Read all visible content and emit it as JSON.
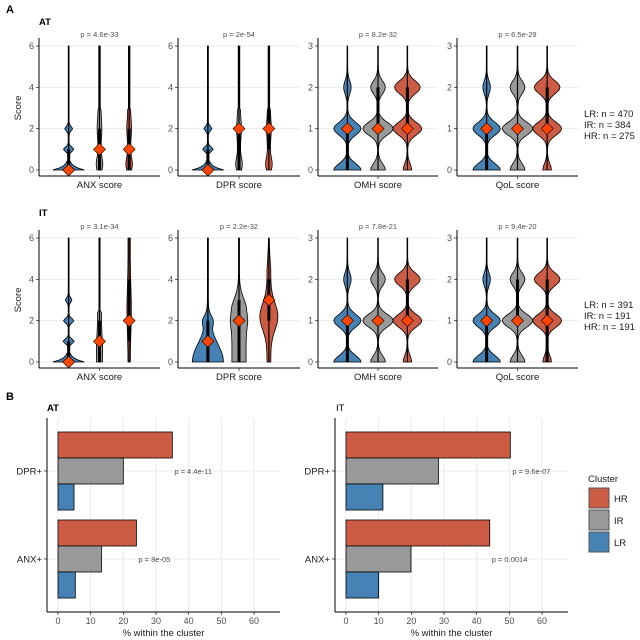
{
  "figure": {
    "panel_a_label": "A",
    "panel_b_label": "B"
  },
  "chart_data": [
    {
      "type": "violin",
      "panel": "A",
      "row_title": "AT",
      "ylabel": "Score",
      "groups": [
        "LR",
        "IR",
        "HR"
      ],
      "colors": {
        "LR": "#4682B4",
        "IR": "#999999",
        "HR": "#CD5C45"
      },
      "median_marker_color": "#FF4500",
      "n_labels": [
        "LR: n = 470",
        "IR: n = 384",
        "HR: n = 275"
      ],
      "facets": [
        {
          "xlabel": "ANX score",
          "p_label": "p = 4.6e-33",
          "ylim": [
            0,
            6
          ],
          "yticks": [
            "0",
            "2",
            "4",
            "6"
          ],
          "medians": [
            0,
            1,
            1
          ],
          "iqr": [
            [
              0,
              1
            ],
            [
              0,
              2
            ],
            [
              0,
              2
            ]
          ]
        },
        {
          "xlabel": "DPR score",
          "p_label": "p = 2e-54",
          "ylim": [
            0,
            6
          ],
          "yticks": [
            "0",
            "2",
            "4",
            "6"
          ],
          "medians": [
            0,
            2,
            2
          ],
          "iqr": [
            [
              0,
              1
            ],
            [
              0,
              2
            ],
            [
              1,
              3
            ]
          ]
        },
        {
          "xlabel": "OMH score",
          "p_label": "p = 8.2e-32",
          "ylim": [
            0,
            3
          ],
          "yticks": [
            "0",
            "1",
            "2",
            "3"
          ],
          "medians": [
            1,
            1,
            1
          ],
          "iqr": [
            [
              0,
              1
            ],
            [
              1,
              2
            ],
            [
              1,
              2
            ]
          ]
        },
        {
          "xlabel": "QoL score",
          "p_label": "p = 6.5e-29",
          "ylim": [
            0,
            3
          ],
          "yticks": [
            "0",
            "1",
            "2",
            "3"
          ],
          "medians": [
            1,
            1,
            1
          ],
          "iqr": [
            [
              0,
              1
            ],
            [
              1,
              1
            ],
            [
              1,
              2
            ]
          ]
        }
      ]
    },
    {
      "type": "violin",
      "panel": "A",
      "row_title": "IT",
      "ylabel": "Score",
      "groups": [
        "LR",
        "IR",
        "HR"
      ],
      "colors": {
        "LR": "#4682B4",
        "IR": "#999999",
        "HR": "#CD5C45"
      },
      "median_marker_color": "#FF4500",
      "n_labels": [
        "LR: n = 391",
        "IR: n = 191",
        "HR: n = 191"
      ],
      "facets": [
        {
          "xlabel": "ANX score",
          "p_label": "p = 3.1e-34",
          "ylim": [
            0,
            6
          ],
          "yticks": [
            "0",
            "2",
            "4",
            "6"
          ],
          "medians": [
            0,
            1,
            2
          ],
          "iqr": [
            [
              0,
              1
            ],
            [
              0,
              2
            ],
            [
              1,
              4
            ]
          ]
        },
        {
          "xlabel": "DPR score",
          "p_label": "p = 2.2e-32",
          "ylim": [
            0,
            6
          ],
          "yticks": [
            "0",
            "2",
            "4",
            "6"
          ],
          "medians": [
            1,
            2,
            3
          ],
          "iqr": [
            [
              0,
              2
            ],
            [
              0,
              3
            ],
            [
              2,
              4
            ]
          ]
        },
        {
          "xlabel": "OMH score",
          "p_label": "p = 7.8e-21",
          "ylim": [
            0,
            3
          ],
          "yticks": [
            "0",
            "1",
            "2",
            "3"
          ],
          "medians": [
            1,
            1,
            1
          ],
          "iqr": [
            [
              0,
              1
            ],
            [
              1,
              1
            ],
            [
              1,
              2
            ]
          ]
        },
        {
          "xlabel": "QoL score",
          "p_label": "p = 9.4e-20",
          "ylim": [
            0,
            3
          ],
          "yticks": [
            "0",
            "1",
            "2",
            "3"
          ],
          "medians": [
            1,
            1,
            1
          ],
          "iqr": [
            [
              0,
              1
            ],
            [
              1,
              2
            ],
            [
              0,
              2
            ]
          ]
        }
      ]
    },
    {
      "type": "bar",
      "orientation": "horizontal",
      "panel": "B",
      "title": "AT",
      "xlabel": "% within the cluster",
      "xlim": [
        0,
        65
      ],
      "xticks": [
        "0",
        "10",
        "20",
        "30",
        "40",
        "50",
        "60"
      ],
      "categories": [
        "DPR+",
        "ANX+"
      ],
      "series": [
        {
          "name": "HR",
          "color": "#CD5C45",
          "values": [
            35,
            24
          ]
        },
        {
          "name": "IR",
          "color": "#999999",
          "values": [
            20,
            13.3
          ]
        },
        {
          "name": "LR",
          "color": "#4682B4",
          "values": [
            4.9,
            5.3
          ]
        }
      ],
      "p_labels": [
        "p = 4.4e-11",
        "p = 8e-05"
      ]
    },
    {
      "type": "bar",
      "orientation": "horizontal",
      "panel": "B",
      "title": "IT",
      "xlabel": "% within the cluster",
      "xlim": [
        0,
        65
      ],
      "xticks": [
        "0",
        "10",
        "20",
        "30",
        "40",
        "50",
        "60"
      ],
      "categories": [
        "DPR+",
        "ANX+"
      ],
      "series": [
        {
          "name": "HR",
          "color": "#CD5C45",
          "values": [
            50.3,
            44
          ]
        },
        {
          "name": "IR",
          "color": "#999999",
          "values": [
            28.3,
            19.9
          ]
        },
        {
          "name": "LR",
          "color": "#4682B4",
          "values": [
            11.3,
            10
          ]
        }
      ],
      "p_labels": [
        "p = 9.6e-07",
        "p = 0.0014"
      ]
    }
  ],
  "legend": {
    "title": "Cluster",
    "placement": "right",
    "items": [
      {
        "label": "HR",
        "color": "#CD5C45"
      },
      {
        "label": "IR",
        "color": "#999999"
      },
      {
        "label": "LR",
        "color": "#4682B4"
      }
    ]
  }
}
